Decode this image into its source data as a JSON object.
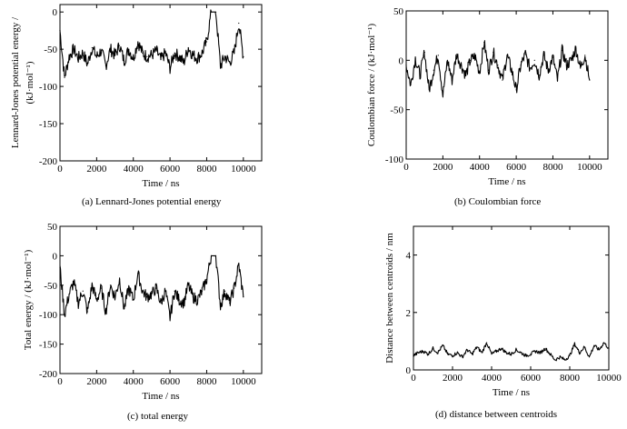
{
  "figure": {
    "captions": [
      "(a) Lennard-Jones  potential energy",
      "(b) Coulombian force",
      "(c) total energy",
      "(d) distance between centroids"
    ]
  },
  "chart_data": [
    {
      "type": "line",
      "xlabel": "Time / ns",
      "ylabel_lines": [
        "Lennard-Jones potential energy /",
        "(kJ·mol⁻¹)"
      ],
      "xlim": [
        0,
        11000
      ],
      "ylim": [
        -200,
        10
      ],
      "xticks": [
        0,
        2000,
        4000,
        6000,
        8000,
        10000
      ],
      "yticks": [
        -200,
        -150,
        -100,
        -50,
        0
      ],
      "x": [
        0,
        250,
        500,
        750,
        1000,
        1250,
        1500,
        1750,
        2000,
        2250,
        2500,
        2750,
        3000,
        3250,
        3500,
        3750,
        4000,
        4250,
        4500,
        4750,
        5000,
        5250,
        5500,
        5750,
        6000,
        6250,
        6500,
        6750,
        7000,
        7250,
        7500,
        7750,
        8000,
        8250,
        8500,
        8750,
        9000,
        9250,
        9500,
        9750,
        10000
      ],
      "y": [
        -25,
        -88,
        -60,
        -50,
        -62,
        -55,
        -70,
        -48,
        -60,
        -52,
        -72,
        -50,
        -58,
        -45,
        -66,
        -50,
        -62,
        -40,
        -55,
        -60,
        -58,
        -52,
        -64,
        -55,
        -75,
        -55,
        -60,
        -68,
        -48,
        -58,
        -62,
        -55,
        -40,
        0,
        0,
        -72,
        -60,
        -68,
        -55,
        -15,
        -60
      ]
    },
    {
      "type": "line",
      "xlabel": "Time / ns",
      "ylabel": "Coulombian force  / (kJ·mol⁻¹)",
      "xlim": [
        0,
        11000
      ],
      "ylim": [
        -100,
        50
      ],
      "xticks": [
        0,
        2000,
        4000,
        6000,
        8000,
        10000
      ],
      "yticks": [
        -100,
        -50,
        0,
        50
      ],
      "x": [
        0,
        250,
        500,
        750,
        1000,
        1250,
        1500,
        1750,
        2000,
        2250,
        2500,
        2750,
        3000,
        3250,
        3500,
        3750,
        4000,
        4250,
        4500,
        4750,
        5000,
        5250,
        5500,
        5750,
        6000,
        6250,
        6500,
        6750,
        7000,
        7250,
        7500,
        7750,
        8000,
        8250,
        8500,
        8750,
        9000,
        9250,
        9500,
        9750,
        10000
      ],
      "y": [
        -5,
        -25,
        2,
        -15,
        8,
        -30,
        -10,
        5,
        -35,
        0,
        -20,
        6,
        -5,
        -15,
        0,
        4,
        -12,
        18,
        -10,
        8,
        -5,
        -20,
        5,
        -10,
        -30,
        -5,
        6,
        -8,
        0,
        -15,
        5,
        -10,
        3,
        -20,
        10,
        -5,
        0,
        12,
        -8,
        5,
        -20
      ]
    },
    {
      "type": "line",
      "xlabel": "Time / ns",
      "ylabel": "Total energy  / (kJ·mol⁻¹)",
      "xlim": [
        0,
        11000
      ],
      "ylim": [
        -200,
        50
      ],
      "xticks": [
        0,
        2000,
        4000,
        6000,
        8000,
        10000
      ],
      "yticks": [
        -200,
        -150,
        -100,
        -50,
        0,
        50
      ],
      "x": [
        0,
        250,
        500,
        750,
        1000,
        1250,
        1500,
        1750,
        2000,
        2250,
        2500,
        2750,
        3000,
        3250,
        3500,
        3750,
        4000,
        4250,
        4500,
        4750,
        5000,
        5250,
        5500,
        5750,
        6000,
        6250,
        6500,
        6750,
        7000,
        7250,
        7500,
        7750,
        8000,
        8250,
        8500,
        8750,
        9000,
        9250,
        9500,
        9750,
        10000
      ],
      "y": [
        -20,
        -100,
        -65,
        -45,
        -80,
        -60,
        -95,
        -50,
        -75,
        -55,
        -95,
        -50,
        -70,
        -40,
        -90,
        -55,
        -75,
        -30,
        -60,
        -70,
        -65,
        -55,
        -80,
        -60,
        -105,
        -60,
        -75,
        -80,
        -50,
        -70,
        -75,
        -60,
        -40,
        0,
        0,
        -85,
        -60,
        -80,
        -55,
        -15,
        -70
      ]
    },
    {
      "type": "line",
      "xlabel": "Time / ns",
      "ylabel": "Distance between centroids / nm",
      "xlim": [
        0,
        10000
      ],
      "ylim": [
        0,
        5
      ],
      "xticks": [
        0,
        2000,
        4000,
        6000,
        8000,
        10000
      ],
      "yticks": [
        0,
        2,
        4
      ],
      "x": [
        0,
        250,
        500,
        750,
        1000,
        1250,
        1500,
        1750,
        2000,
        2250,
        2500,
        2750,
        3000,
        3250,
        3500,
        3750,
        4000,
        4250,
        4500,
        4750,
        5000,
        5250,
        5500,
        5750,
        6000,
        6250,
        6500,
        6750,
        7000,
        7250,
        7500,
        7750,
        8000,
        8250,
        8500,
        8750,
        9000,
        9250,
        9500,
        9750,
        10000
      ],
      "y": [
        0.5,
        0.6,
        0.65,
        0.55,
        0.75,
        0.6,
        0.85,
        0.55,
        0.5,
        0.6,
        0.45,
        0.7,
        0.55,
        0.8,
        0.6,
        0.95,
        0.55,
        0.65,
        0.75,
        0.6,
        0.55,
        0.7,
        0.6,
        0.5,
        0.55,
        0.65,
        0.6,
        0.75,
        0.55,
        0.35,
        0.45,
        0.35,
        0.5,
        0.9,
        0.6,
        0.8,
        0.45,
        0.85,
        0.7,
        0.95,
        0.75
      ]
    }
  ]
}
